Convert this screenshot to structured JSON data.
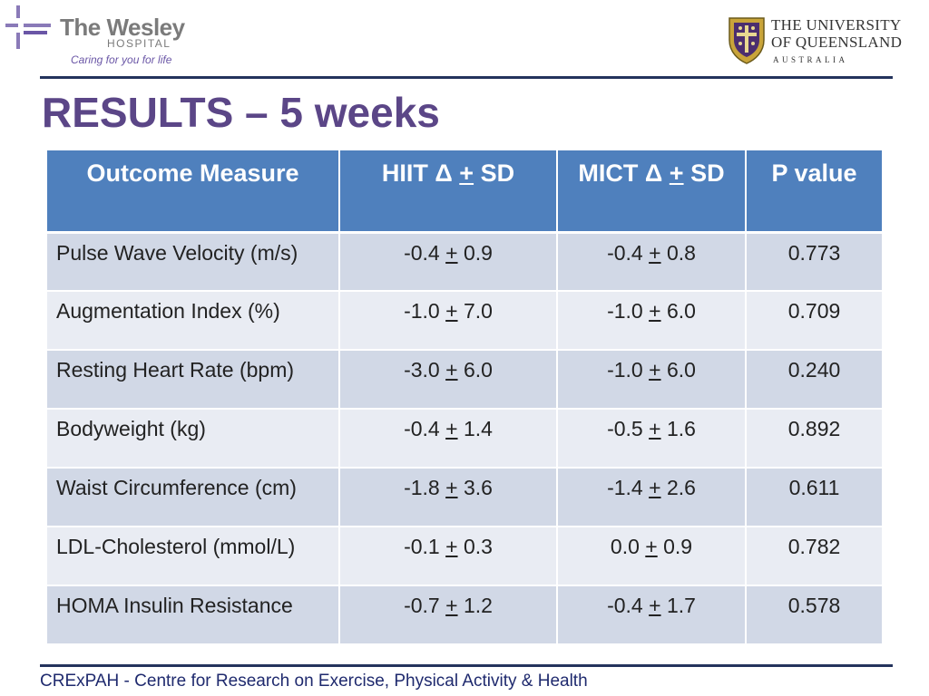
{
  "logos": {
    "wesley": {
      "name": "The Wesley",
      "sub": "HOSPITAL",
      "tagline": "Caring for you for life"
    },
    "uq": {
      "line1": "THE UNIVERSITY",
      "line2": "OF QUEENSLAND",
      "line3": "AUSTRALIA"
    }
  },
  "title": "RESULTS – 5 weeks",
  "table": {
    "headers": {
      "outcome": "Outcome Measure",
      "hiit": {
        "pre": "HIIT Δ ",
        "pm": "+",
        "post": " SD"
      },
      "mict": {
        "pre": "MICT Δ ",
        "pm": "+",
        "post": " SD"
      },
      "p": "P value"
    },
    "rows": [
      {
        "measure": "Pulse Wave Velocity (m/s)",
        "hiit": {
          "mean": "-0.4",
          "sd": "0.9"
        },
        "mict": {
          "mean": "-0.4",
          "sd": "0.8"
        },
        "p": "0.773"
      },
      {
        "measure": "Augmentation Index (%)",
        "hiit": {
          "mean": "-1.0",
          "sd": "7.0"
        },
        "mict": {
          "mean": "-1.0",
          "sd": "6.0"
        },
        "p": "0.709"
      },
      {
        "measure": "Resting Heart Rate (bpm)",
        "hiit": {
          "mean": "-3.0",
          "sd": "6.0"
        },
        "mict": {
          "mean": "-1.0",
          "sd": "6.0"
        },
        "p": "0.240"
      },
      {
        "measure": "Bodyweight (kg)",
        "hiit": {
          "mean": "-0.4",
          "sd": "1.4"
        },
        "mict": {
          "mean": "-0.5",
          "sd": "1.6"
        },
        "p": "0.892"
      },
      {
        "measure": "Waist Circumference (cm)",
        "hiit": {
          "mean": "-1.8",
          "sd": "3.6"
        },
        "mict": {
          "mean": "-1.4",
          "sd": "2.6"
        },
        "p": "0.611"
      },
      {
        "measure": "LDL-Cholesterol (mmol/L)",
        "hiit": {
          "mean": "-0.1",
          "sd": "0.3"
        },
        "mict": {
          "mean": "0.0",
          "sd": "0.9"
        },
        "p": "0.782"
      },
      {
        "measure": "HOMA Insulin Resistance",
        "hiit": {
          "mean": "-0.7",
          "sd": "1.2"
        },
        "mict": {
          "mean": "-0.4",
          "sd": "1.7"
        },
        "p": "0.578"
      }
    ],
    "pm_symbol": "+"
  },
  "footer": "CRExPAH - Centre for Research on Exercise, Physical Activity & Health",
  "colors": {
    "title": "#5b4687",
    "header_bg": "#4f80bd",
    "row_dark": "#d1d8e6",
    "row_light": "#e9ecf3",
    "rule": "#24335c",
    "footer": "#1f2a6e",
    "wesley_purple": "#6a56a6"
  }
}
